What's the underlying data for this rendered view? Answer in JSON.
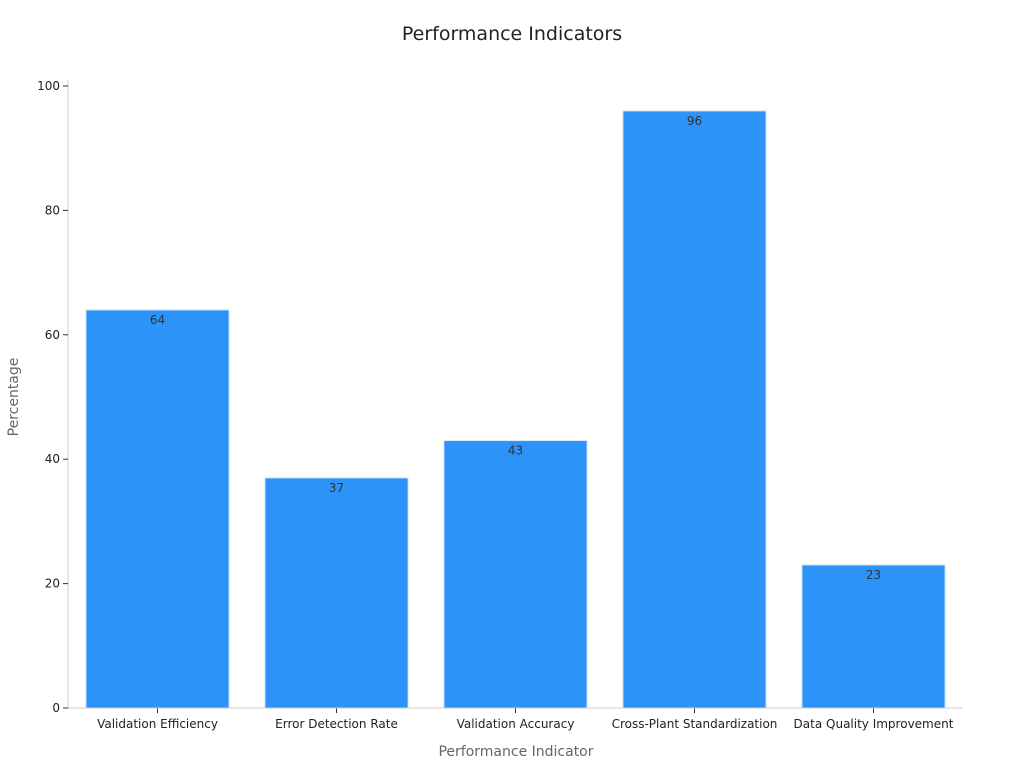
{
  "chart_data": {
    "type": "bar",
    "title": "Performance Indicators",
    "xlabel": "Performance Indicator",
    "ylabel": "Percentage",
    "categories": [
      "Validation Efficiency",
      "Error Detection Rate",
      "Validation Accuracy",
      "Cross-Plant Standardization",
      "Data Quality Improvement"
    ],
    "values": [
      64,
      37,
      43,
      96,
      23
    ],
    "ylim": [
      0,
      100
    ],
    "yticks": [
      0,
      20,
      40,
      60,
      80,
      100
    ],
    "grid": false,
    "data_labels": true,
    "colors": {
      "bar": "#2E93F8",
      "bar_edge": "#D9E8F8",
      "axis": "#CCCCCC",
      "text": "#222222",
      "label": "#666666"
    }
  }
}
